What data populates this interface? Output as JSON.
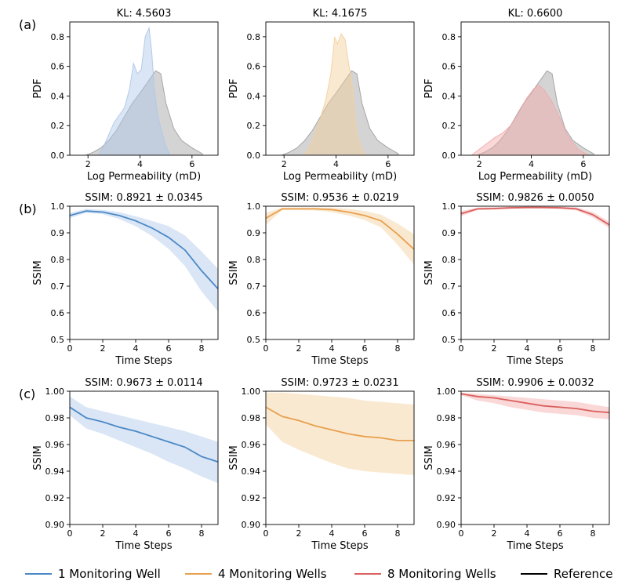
{
  "chart_data": [
    {
      "type": "area",
      "row": "a",
      "col": 0,
      "panel_label": "(a)",
      "title": "KL: 4.5603",
      "xlabel": "Log Permeability (mD)",
      "ylabel": "PDF",
      "xlim": [
        1.3,
        7.0
      ],
      "ylim": [
        0,
        0.9
      ],
      "xticks": [
        2,
        4,
        6
      ],
      "yticks": [
        0.0,
        0.2,
        0.4,
        0.6,
        0.8
      ],
      "series": [
        {
          "name": "Reference",
          "color": "#a0a0a0",
          "x": [
            1.9,
            2.2,
            2.5,
            2.8,
            3.1,
            3.4,
            3.7,
            4.0,
            4.2,
            4.4,
            4.6,
            4.8,
            5.0,
            5.3,
            5.6,
            6.0,
            6.4
          ],
          "y": [
            0.0,
            0.02,
            0.05,
            0.1,
            0.17,
            0.26,
            0.35,
            0.42,
            0.47,
            0.52,
            0.57,
            0.55,
            0.35,
            0.18,
            0.1,
            0.05,
            0.01
          ]
        },
        {
          "name": "1 Monitoring Well",
          "color": "#aec7e8",
          "x": [
            2.4,
            2.6,
            2.8,
            3.0,
            3.2,
            3.4,
            3.6,
            3.75,
            3.9,
            4.05,
            4.2,
            4.35,
            4.45,
            4.55,
            4.65,
            4.8,
            5.0,
            5.15
          ],
          "y": [
            0.0,
            0.06,
            0.14,
            0.22,
            0.27,
            0.32,
            0.45,
            0.62,
            0.55,
            0.58,
            0.8,
            0.86,
            0.7,
            0.45,
            0.3,
            0.18,
            0.06,
            0.0
          ]
        }
      ]
    },
    {
      "type": "area",
      "row": "a",
      "col": 1,
      "title": "KL: 4.1675",
      "xlabel": "Log Permeability (mD)",
      "ylabel": "PDF",
      "xlim": [
        1.3,
        7.0
      ],
      "ylim": [
        0,
        0.9
      ],
      "xticks": [
        2,
        4,
        6
      ],
      "yticks": [
        0.0,
        0.2,
        0.4,
        0.6,
        0.8
      ],
      "series": [
        {
          "name": "Reference",
          "color": "#a0a0a0",
          "x": [
            1.9,
            2.2,
            2.5,
            2.8,
            3.1,
            3.4,
            3.7,
            4.0,
            4.2,
            4.4,
            4.6,
            4.8,
            5.0,
            5.3,
            5.6,
            6.0,
            6.4
          ],
          "y": [
            0.0,
            0.02,
            0.05,
            0.1,
            0.17,
            0.26,
            0.35,
            0.42,
            0.47,
            0.52,
            0.57,
            0.55,
            0.35,
            0.18,
            0.1,
            0.05,
            0.01
          ]
        },
        {
          "name": "4 Monitoring Wells",
          "color": "#f5cf9a",
          "x": [
            2.8,
            3.0,
            3.2,
            3.4,
            3.6,
            3.8,
            3.95,
            4.05,
            4.2,
            4.35,
            4.5,
            4.6,
            4.7,
            4.8,
            4.95,
            5.1
          ],
          "y": [
            0.0,
            0.06,
            0.15,
            0.25,
            0.37,
            0.55,
            0.8,
            0.75,
            0.82,
            0.78,
            0.6,
            0.5,
            0.3,
            0.15,
            0.05,
            0.0
          ]
        }
      ]
    },
    {
      "type": "area",
      "row": "a",
      "col": 2,
      "title": "KL: 0.6600",
      "xlabel": "Log Permeability (mD)",
      "ylabel": "PDF",
      "xlim": [
        1.3,
        7.0
      ],
      "ylim": [
        0,
        0.9
      ],
      "xticks": [
        2,
        4,
        6
      ],
      "yticks": [
        0.0,
        0.2,
        0.4,
        0.6,
        0.8
      ],
      "series": [
        {
          "name": "Reference",
          "color": "#a0a0a0",
          "x": [
            1.9,
            2.2,
            2.5,
            2.8,
            3.1,
            3.4,
            3.7,
            4.0,
            4.2,
            4.4,
            4.6,
            4.8,
            5.0,
            5.3,
            5.6,
            6.0,
            6.4
          ],
          "y": [
            0.0,
            0.02,
            0.05,
            0.1,
            0.17,
            0.26,
            0.35,
            0.42,
            0.47,
            0.52,
            0.57,
            0.55,
            0.35,
            0.18,
            0.1,
            0.05,
            0.01
          ]
        },
        {
          "name": "8 Monitoring Wells",
          "color": "#f4a9a8",
          "x": [
            1.7,
            2.0,
            2.3,
            2.6,
            2.9,
            3.2,
            3.5,
            3.8,
            4.1,
            4.3,
            4.5,
            4.8,
            5.1,
            5.4,
            5.8,
            6.2
          ],
          "y": [
            0.0,
            0.04,
            0.08,
            0.12,
            0.15,
            0.2,
            0.28,
            0.38,
            0.45,
            0.47,
            0.44,
            0.36,
            0.25,
            0.13,
            0.04,
            0.0
          ]
        }
      ]
    },
    {
      "type": "line",
      "row": "b",
      "col": 0,
      "panel_label": "(b)",
      "title": "SSIM: 0.8921 ± 0.0345",
      "xlabel": "Time Steps",
      "ylabel": "SSIM",
      "xlim": [
        0,
        9
      ],
      "ylim": [
        0.5,
        1.0
      ],
      "xticks": [
        0,
        2,
        4,
        6,
        8
      ],
      "yticks": [
        0.5,
        0.6,
        0.7,
        0.8,
        0.9,
        1.0
      ],
      "series": [
        {
          "name": "1 Monitoring Well",
          "color": "#4a88c7",
          "fill": "#aec7e8",
          "x": [
            0,
            1,
            2,
            3,
            4,
            5,
            6,
            7,
            8,
            9
          ],
          "y": [
            0.965,
            0.982,
            0.978,
            0.965,
            0.945,
            0.918,
            0.883,
            0.835,
            0.758,
            0.69
          ],
          "lower": [
            0.955,
            0.975,
            0.97,
            0.952,
            0.925,
            0.888,
            0.84,
            0.775,
            0.68,
            0.605
          ],
          "upper": [
            0.975,
            0.99,
            0.986,
            0.978,
            0.962,
            0.945,
            0.925,
            0.89,
            0.83,
            0.765
          ]
        }
      ]
    },
    {
      "type": "line",
      "row": "b",
      "col": 1,
      "title": "SSIM: 0.9536 ± 0.0219",
      "xlabel": "Time Steps",
      "ylabel": "SSIM",
      "xlim": [
        0,
        9
      ],
      "ylim": [
        0.5,
        1.0
      ],
      "xticks": [
        0,
        2,
        4,
        6,
        8
      ],
      "yticks": [
        0.5,
        0.6,
        0.7,
        0.8,
        0.9,
        1.0
      ],
      "series": [
        {
          "name": "4 Monitoring Wells",
          "color": "#e8a04e",
          "fill": "#f5cf9a",
          "x": [
            0,
            1,
            2,
            3,
            4,
            5,
            6,
            7,
            8,
            9
          ],
          "y": [
            0.955,
            0.99,
            0.99,
            0.99,
            0.987,
            0.978,
            0.965,
            0.945,
            0.895,
            0.838
          ],
          "lower": [
            0.93,
            0.985,
            0.985,
            0.984,
            0.978,
            0.965,
            0.948,
            0.92,
            0.855,
            0.78
          ],
          "upper": [
            0.975,
            0.995,
            0.995,
            0.995,
            0.995,
            0.99,
            0.982,
            0.968,
            0.935,
            0.895
          ]
        }
      ]
    },
    {
      "type": "line",
      "row": "b",
      "col": 2,
      "title": "SSIM: 0.9826 ± 0.0050",
      "xlabel": "Time Steps",
      "ylabel": "SSIM",
      "xlim": [
        0,
        9
      ],
      "ylim": [
        0.5,
        1.0
      ],
      "xticks": [
        0,
        2,
        4,
        6,
        8
      ],
      "yticks": [
        0.5,
        0.6,
        0.7,
        0.8,
        0.9,
        1.0
      ],
      "series": [
        {
          "name": "8 Monitoring Wells",
          "color": "#d9605e",
          "fill": "#f4a9a8",
          "x": [
            0,
            1,
            2,
            3,
            4,
            5,
            6,
            7,
            8,
            9
          ],
          "y": [
            0.972,
            0.99,
            0.991,
            0.994,
            0.995,
            0.995,
            0.994,
            0.99,
            0.968,
            0.93
          ],
          "lower": [
            0.962,
            0.985,
            0.987,
            0.99,
            0.992,
            0.992,
            0.99,
            0.984,
            0.958,
            0.918
          ],
          "upper": [
            0.982,
            0.995,
            0.996,
            0.998,
            0.998,
            0.998,
            0.998,
            0.996,
            0.978,
            0.942
          ]
        }
      ]
    },
    {
      "type": "line",
      "row": "c",
      "col": 0,
      "panel_label": "(c)",
      "title": "SSIM: 0.9673 ± 0.0114",
      "xlabel": "Time Steps",
      "ylabel": "SSIM",
      "xlim": [
        0,
        9
      ],
      "ylim": [
        0.9,
        1.0
      ],
      "xticks": [
        0,
        2,
        4,
        6,
        8
      ],
      "yticks": [
        0.9,
        0.92,
        0.94,
        0.96,
        0.98,
        1.0
      ],
      "series": [
        {
          "name": "1 Monitoring Well",
          "color": "#4a88c7",
          "fill": "#aec7e8",
          "x": [
            0,
            1,
            2,
            3,
            4,
            5,
            6,
            7,
            8,
            9
          ],
          "y": [
            0.988,
            0.98,
            0.977,
            0.973,
            0.97,
            0.966,
            0.962,
            0.958,
            0.951,
            0.947
          ],
          "lower": [
            0.982,
            0.972,
            0.968,
            0.963,
            0.958,
            0.953,
            0.947,
            0.942,
            0.936,
            0.931
          ],
          "upper": [
            0.996,
            0.988,
            0.985,
            0.982,
            0.979,
            0.976,
            0.973,
            0.97,
            0.966,
            0.962
          ]
        }
      ]
    },
    {
      "type": "line",
      "row": "c",
      "col": 1,
      "title": "SSIM: 0.9723 ± 0.0231",
      "xlabel": "Time Steps",
      "ylabel": "SSIM",
      "xlim": [
        0,
        9
      ],
      "ylim": [
        0.9,
        1.0
      ],
      "xticks": [
        0,
        2,
        4,
        6,
        8
      ],
      "yticks": [
        0.9,
        0.92,
        0.94,
        0.96,
        0.98,
        1.0
      ],
      "series": [
        {
          "name": "4 Monitoring Wells",
          "color": "#e8a04e",
          "fill": "#f5cf9a",
          "x": [
            0,
            1,
            2,
            3,
            4,
            5,
            6,
            7,
            8,
            9
          ],
          "y": [
            0.988,
            0.981,
            0.978,
            0.974,
            0.971,
            0.968,
            0.966,
            0.965,
            0.963,
            0.963
          ],
          "lower": [
            0.975,
            0.962,
            0.956,
            0.951,
            0.946,
            0.942,
            0.94,
            0.939,
            0.938,
            0.937
          ],
          "upper": [
            0.999,
            0.999,
            0.998,
            0.997,
            0.996,
            0.995,
            0.993,
            0.992,
            0.991,
            0.99
          ]
        }
      ]
    },
    {
      "type": "line",
      "row": "c",
      "col": 2,
      "title": "SSIM: 0.9906 ± 0.0032",
      "xlabel": "Time Steps",
      "ylabel": "SSIM",
      "xlim": [
        0,
        9
      ],
      "ylim": [
        0.9,
        1.0
      ],
      "xticks": [
        0,
        2,
        4,
        6,
        8
      ],
      "yticks": [
        0.9,
        0.92,
        0.94,
        0.96,
        0.98,
        1.0
      ],
      "series": [
        {
          "name": "8 Monitoring Wells",
          "color": "#d9605e",
          "fill": "#f4a9a8",
          "x": [
            0,
            1,
            2,
            3,
            4,
            5,
            6,
            7,
            8,
            9
          ],
          "y": [
            0.998,
            0.996,
            0.995,
            0.993,
            0.991,
            0.989,
            0.988,
            0.987,
            0.985,
            0.984
          ],
          "lower": [
            0.997,
            0.993,
            0.991,
            0.988,
            0.986,
            0.984,
            0.983,
            0.982,
            0.98,
            0.979
          ],
          "upper": [
            0.999,
            0.998,
            0.997,
            0.996,
            0.995,
            0.994,
            0.993,
            0.992,
            0.99,
            0.988
          ]
        }
      ]
    }
  ],
  "legend": [
    {
      "label": "1 Monitoring Well",
      "color": "#4a88c7"
    },
    {
      "label": "4 Monitoring Wells",
      "color": "#e8a04e"
    },
    {
      "label": "8 Monitoring Wells",
      "color": "#d9605e"
    },
    {
      "label": "Reference",
      "color": "#000000"
    }
  ]
}
